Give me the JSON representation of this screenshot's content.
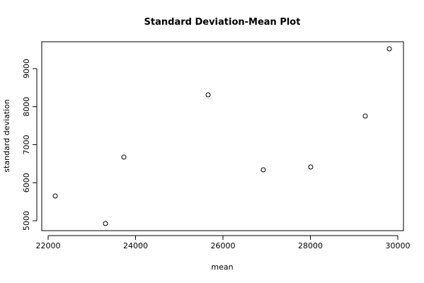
{
  "chart_data": {
    "type": "scatter",
    "title": "Standard Deviation-Mean Plot",
    "x_label": "mean",
    "y_label": "standard deviation",
    "x": [
      22162,
      23312,
      23733,
      25660,
      26923,
      28008,
      29255,
      29806
    ],
    "values": [
      5651,
      4926,
      6674,
      8312,
      6340,
      6414,
      7753,
      9521
    ],
    "color": "#000000",
    "xlim": [
      21854,
      30130
    ],
    "ylim": [
      4740,
      9707
    ],
    "xticks": [
      22000,
      24000,
      26000,
      28000,
      30000
    ],
    "yticks": [
      5000,
      6000,
      7000,
      8000,
      9000
    ]
  }
}
